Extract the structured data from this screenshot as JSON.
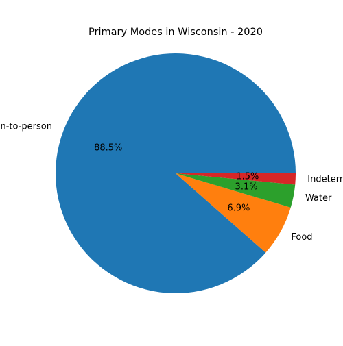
{
  "chart_data": {
    "type": "pie",
    "title": "Primary Modes in Wisconsin - 2020",
    "labels": [
      "Person-to-person",
      "Food",
      "Water",
      "Indeterminate"
    ],
    "values": [
      88.5,
      6.9,
      3.1,
      1.5
    ],
    "percent_labels": [
      "88.5%",
      "6.9%",
      "3.1%",
      "1.5%"
    ],
    "colors": [
      "#1f77b4",
      "#ff7f0e",
      "#2ca02c",
      "#d62728"
    ],
    "start_angle_deg": 0,
    "direction": "counterclockwise"
  }
}
